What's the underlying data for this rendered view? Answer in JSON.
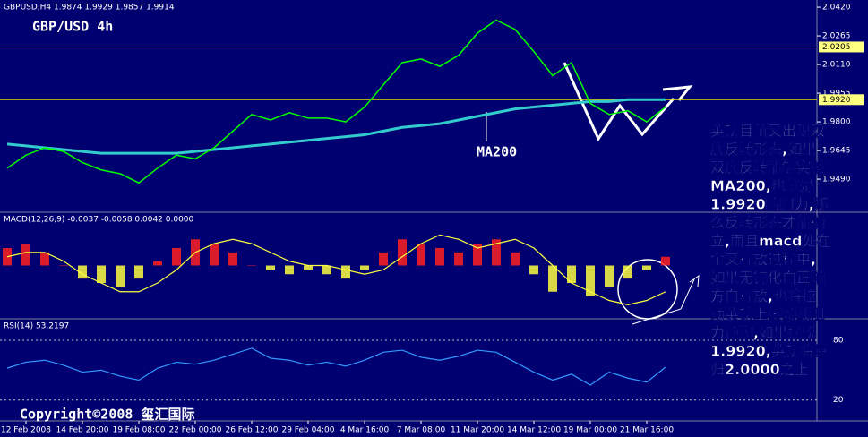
{
  "header": {
    "symbol_info": "GBPUSD,H4  1.9874 1.9929 1.9857 1.9914",
    "title": "GBP/USD 4h"
  },
  "chart_data": [
    {
      "type": "line",
      "categories": [
        null,
        "12 Feb 2008",
        null,
        null,
        "14 Feb 20:00",
        null,
        null,
        "19 Feb 08:00",
        null,
        null,
        "22 Feb 00:00",
        null,
        null,
        "26 Feb 12:00",
        null,
        null,
        "29 Feb 04:00",
        null,
        null,
        "4 Mar 16:00",
        null,
        null,
        "7 Mar 08:00",
        null,
        null,
        "11 Mar 20:00",
        null,
        null,
        "14 Mar 12:00",
        null,
        null,
        "19 Mar 00:00",
        null,
        null,
        "21 Mar 16:00",
        null
      ],
      "price": {
        "color": "#00ff00",
        "values": [
          1.955,
          1.962,
          1.966,
          1.964,
          1.958,
          1.954,
          1.952,
          1.947,
          1.955,
          1.962,
          1.96,
          1.966,
          1.975,
          1.984,
          1.981,
          1.985,
          1.982,
          1.982,
          1.98,
          1.988,
          2.0,
          2.012,
          2.014,
          2.01,
          2.016,
          2.028,
          2.035,
          2.03,
          2.018,
          2.005,
          2.012,
          1.99,
          1.984,
          1.986,
          1.98,
          1.988
        ]
      },
      "ma200": {
        "name": "MA200",
        "color": "#33cccc",
        "values": [
          1.968,
          1.967,
          1.966,
          1.965,
          1.964,
          1.963,
          1.963,
          1.963,
          1.963,
          1.963,
          1.964,
          1.965,
          1.966,
          1.967,
          1.968,
          1.969,
          1.97,
          1.971,
          1.972,
          1.973,
          1.975,
          1.977,
          1.978,
          1.979,
          1.981,
          1.983,
          1.985,
          1.987,
          1.988,
          1.989,
          1.99,
          1.991,
          1.991,
          1.992,
          1.992,
          1.992
        ]
      },
      "ylim": [
        1.9316,
        2.0459
      ],
      "yticks": [
        {
          "value": 2.042,
          "label": "2.0420"
        },
        {
          "value": 2.0265,
          "label": "2.0265"
        },
        {
          "value": 2.011,
          "label": "2.0110"
        },
        {
          "value": 1.9955,
          "label": "1.9955"
        },
        {
          "value": 1.98,
          "label": "1.9800"
        },
        {
          "value": 1.9645,
          "label": "1.9645"
        },
        {
          "value": 1.949,
          "label": "1.9490"
        }
      ],
      "levels": [
        {
          "value": 2.0205,
          "label": "2.0205"
        },
        {
          "value": 1.992,
          "label": "1.9920"
        }
      ]
    },
    {
      "type": "bar",
      "title": "MACD(12,26,9) -0.0037 -0.0058 0.0042 0.0000",
      "ylim": [
        -0.012,
        0.012
      ],
      "up_color": "#ff2020",
      "down_color": "#ffff40",
      "values": [
        0.004,
        0.005,
        0.003,
        0.0,
        -0.003,
        -0.004,
        -0.005,
        -0.003,
        0.001,
        0.004,
        0.006,
        0.005,
        0.003,
        0.0,
        -0.001,
        -0.002,
        -0.001,
        -0.002,
        -0.003,
        -0.001,
        0.003,
        0.006,
        0.005,
        0.004,
        0.003,
        0.005,
        0.006,
        0.003,
        -0.002,
        -0.006,
        -0.004,
        -0.007,
        -0.005,
        -0.003,
        -0.001,
        0.002
      ],
      "signal": {
        "color": "#ffff40",
        "values": [
          0.002,
          0.003,
          0.003,
          0.001,
          -0.002,
          -0.004,
          -0.006,
          -0.006,
          -0.004,
          -0.001,
          0.003,
          0.005,
          0.006,
          0.005,
          0.003,
          0.001,
          0.0,
          0.0,
          -0.001,
          -0.002,
          -0.001,
          0.002,
          0.005,
          0.007,
          0.006,
          0.004,
          0.005,
          0.006,
          0.004,
          0.0,
          -0.004,
          -0.006,
          -0.008,
          -0.009,
          -0.008,
          -0.006
        ]
      }
    },
    {
      "type": "line",
      "title": "RSI(14) 53.2197",
      "ylim": [
        0,
        100
      ],
      "yticks": [
        20,
        80
      ],
      "color": "#3399ff",
      "values": [
        52,
        58,
        60,
        55,
        48,
        50,
        44,
        40,
        52,
        58,
        56,
        60,
        66,
        72,
        62,
        60,
        55,
        58,
        54,
        60,
        68,
        70,
        63,
        60,
        64,
        70,
        68,
        58,
        48,
        40,
        46,
        35,
        48,
        42,
        38,
        53
      ]
    }
  ],
  "annotation": [
    "英镑目前又出现双",
    "底反转形态,如果",
    "双底反转能够突破",
    "MA200,也就是",
    "1.9920的阻力,那",
    "么反转形态才能确",
    "立,而且macd处在",
    "金叉释放过程中,",
    "如果无钝化向正轴",
    "方向释放,也将拉",
    "动英镑上破颈线阻",
    "力预期,如果摆脱",
    "1.9920,英镑将重",
    "归2.0000之上"
  ],
  "copyright": "Copyright©2008 玺汇国际"
}
